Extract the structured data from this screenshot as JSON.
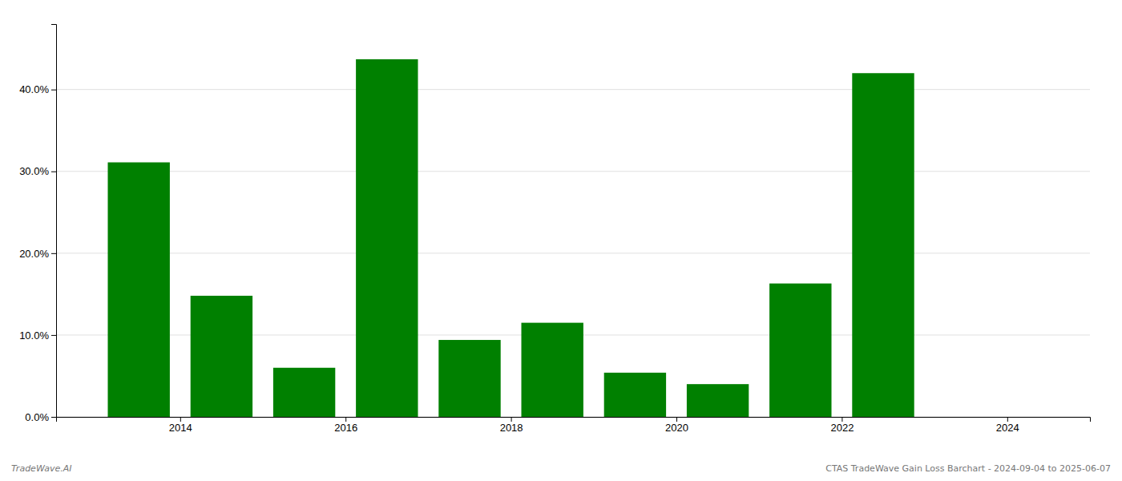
{
  "chart_data": {
    "type": "bar",
    "x": [
      2013.5,
      2014.5,
      2015.5,
      2016.5,
      2017.5,
      2018.5,
      2019.5,
      2020.5,
      2021.5,
      2022.5
    ],
    "values": [
      0.311,
      0.148,
      0.06,
      0.437,
      0.094,
      0.115,
      0.054,
      0.04,
      0.163,
      0.42
    ],
    "color": "#008000",
    "xlim": [
      2012.5,
      2025.0
    ],
    "xticks": [
      2014,
      2016,
      2018,
      2020,
      2022,
      2024
    ],
    "ylim": [
      0,
      0.48
    ],
    "yticks": [
      {
        "value": 0.0,
        "label": "0.0%"
      },
      {
        "value": 0.1,
        "label": "10.0%"
      },
      {
        "value": 0.2,
        "label": "20.0%"
      },
      {
        "value": 0.3,
        "label": "30.0%"
      },
      {
        "value": 0.4,
        "label": "40.0%"
      }
    ],
    "grid": true,
    "annotations": [
      "TradeWave.AI",
      "CTAS TradeWave Gain Loss Barchart - 2024-09-04 to 2025-06-07"
    ]
  }
}
